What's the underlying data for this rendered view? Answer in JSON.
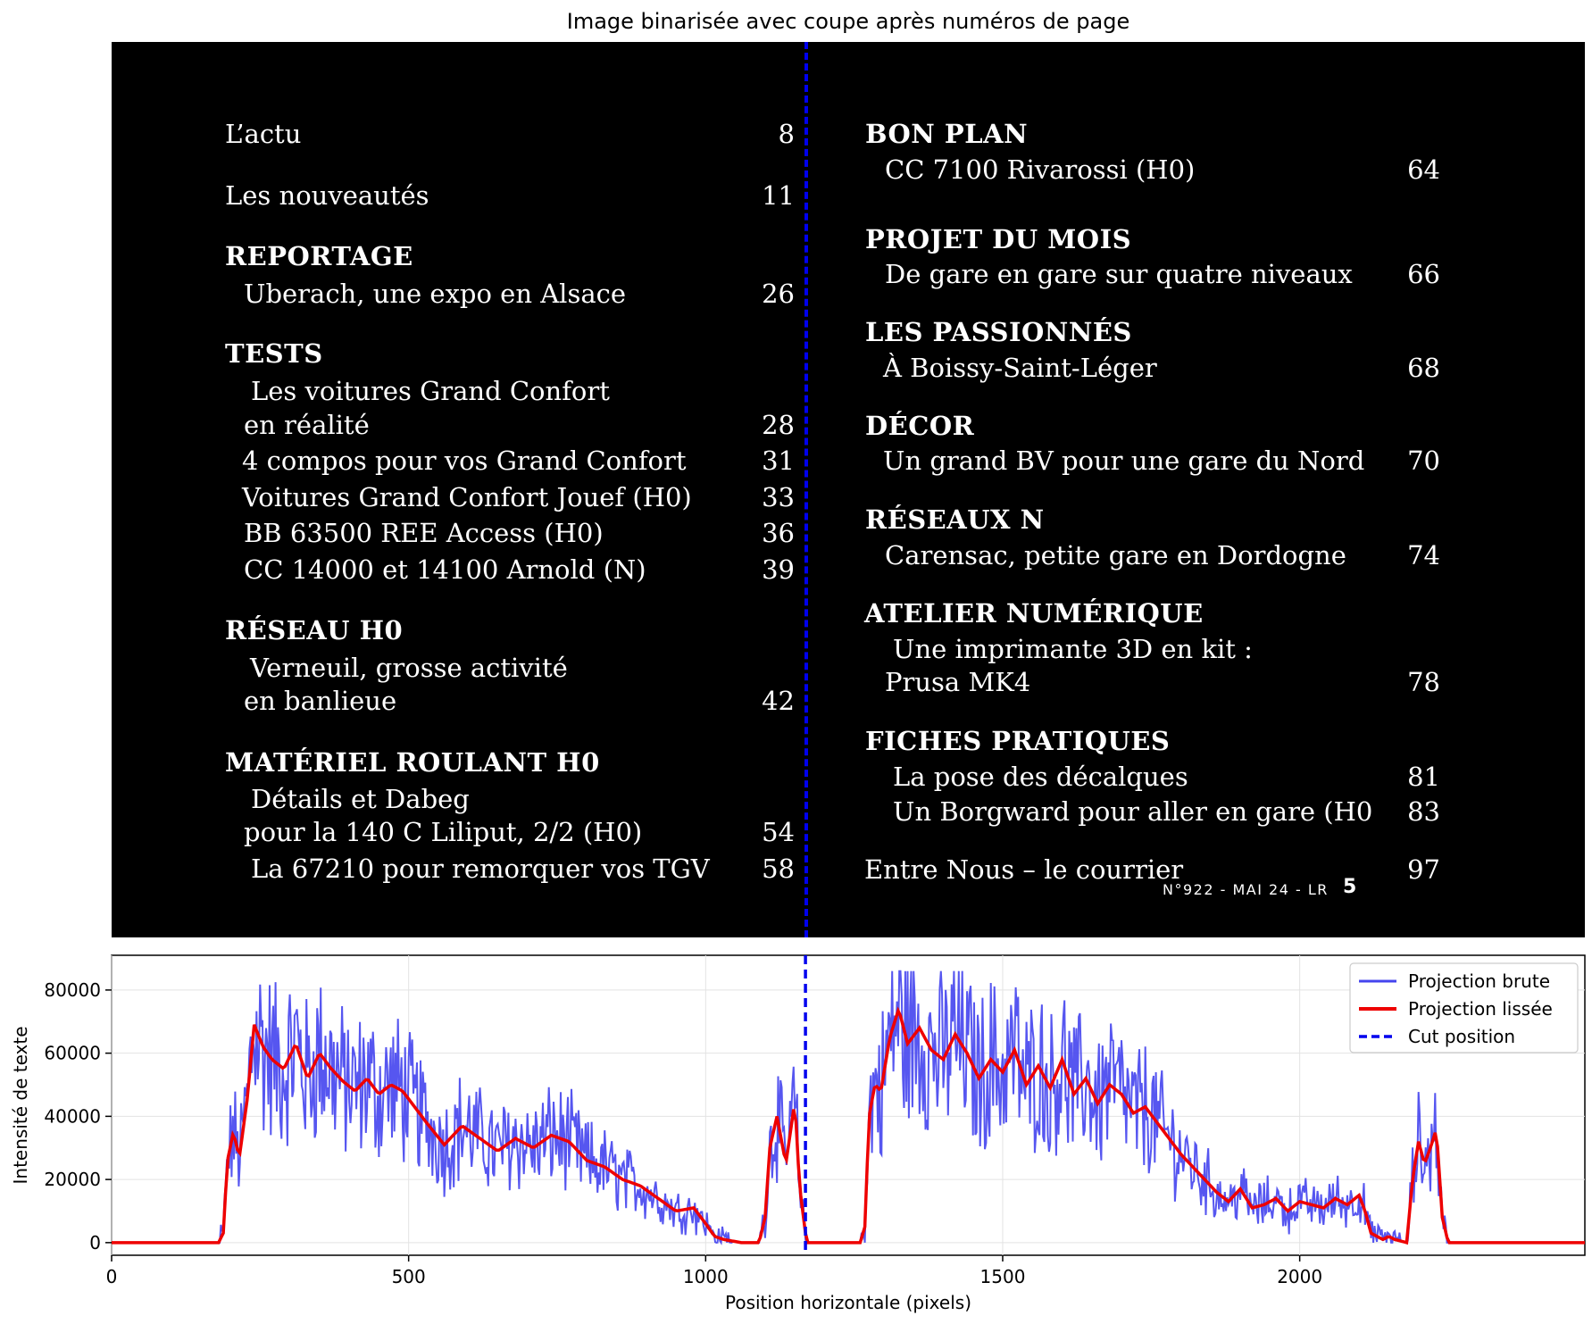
{
  "figure_title": "Image binarisée avec coupe après numéros de page",
  "toc_left": [
    {
      "text": "L’actu",
      "num": "8",
      "bold": false,
      "x": 127,
      "y": 111
    },
    {
      "text": "Les nouveautés",
      "num": "11",
      "bold": false,
      "x": 127,
      "y": 180
    },
    {
      "text": "REPORTAGE",
      "num": "",
      "bold": true,
      "x": 127,
      "y": 248
    },
    {
      "text": "Uberach, une expo en Alsace",
      "num": "26",
      "bold": false,
      "x": 148,
      "y": 290
    },
    {
      "text": "TESTS",
      "num": "",
      "bold": true,
      "x": 127,
      "y": 357
    },
    {
      "text": "Les voitures Grand Confort",
      "num": "",
      "bold": false,
      "x": 156,
      "y": 399
    },
    {
      "text": "en réalité",
      "num": "28",
      "bold": false,
      "x": 148,
      "y": 437
    },
    {
      "text": "4 compos pour vos Grand Confort",
      "num": "31",
      "bold": false,
      "x": 146,
      "y": 477
    },
    {
      "text": "Voitures Grand Confort Jouef (H0)",
      "num": "33",
      "bold": false,
      "x": 146,
      "y": 518
    },
    {
      "text": "BB 63500 REE Access (H0)",
      "num": "36",
      "bold": false,
      "x": 148,
      "y": 558
    },
    {
      "text": "CC 14000 et 14100 Arnold (N)",
      "num": "39",
      "bold": false,
      "x": 148,
      "y": 599
    },
    {
      "text": "RÉSEAU H0",
      "num": "",
      "bold": true,
      "x": 127,
      "y": 667
    },
    {
      "text": "Verneuil, grosse activité",
      "num": "",
      "bold": false,
      "x": 155,
      "y": 709
    },
    {
      "text": "en banlieue",
      "num": "42",
      "bold": false,
      "x": 148,
      "y": 746
    },
    {
      "text": "MATÉRIEL ROULANT H0",
      "num": "",
      "bold": true,
      "x": 127,
      "y": 815
    },
    {
      "text": "Détails et Dabeg",
      "num": "",
      "bold": false,
      "x": 156,
      "y": 856
    },
    {
      "text": "pour la 140 C Liliput, 2/2 (H0)",
      "num": "54",
      "bold": false,
      "x": 148,
      "y": 893
    },
    {
      "text": "La 67210 pour remorquer vos TGV",
      "num": "58",
      "bold": false,
      "x": 156,
      "y": 934
    }
  ],
  "toc_right": [
    {
      "text": "BON PLAN",
      "num": "",
      "bold": true,
      "x": 844,
      "y": 111
    },
    {
      "text": "CC 7100 Rivarossi (H0)",
      "num": "64",
      "bold": false,
      "x": 866,
      "y": 151
    },
    {
      "text": "PROJET DU MOIS",
      "num": "",
      "bold": true,
      "x": 844,
      "y": 229
    },
    {
      "text": "De gare en gare sur quatre niveaux",
      "num": "66",
      "bold": false,
      "x": 866,
      "y": 268
    },
    {
      "text": "LES PASSIONNÉS",
      "num": "",
      "bold": true,
      "x": 844,
      "y": 333
    },
    {
      "text": "À Boissy-Saint-Léger",
      "num": "68",
      "bold": false,
      "x": 864,
      "y": 373
    },
    {
      "text": "DÉCOR",
      "num": "",
      "bold": true,
      "x": 844,
      "y": 438
    },
    {
      "text": "Un grand BV pour une gare du Nord",
      "num": "70",
      "bold": false,
      "x": 864,
      "y": 477
    },
    {
      "text": "RÉSEAUX N",
      "num": "",
      "bold": true,
      "x": 844,
      "y": 543
    },
    {
      "text": "Carensac, petite gare en Dordogne",
      "num": "74",
      "bold": false,
      "x": 866,
      "y": 583
    },
    {
      "text": "ATELIER NUMÉRIQUE",
      "num": "",
      "bold": true,
      "x": 843,
      "y": 648
    },
    {
      "text": "Une imprimante 3D en kit :",
      "num": "",
      "bold": false,
      "x": 875,
      "y": 688
    },
    {
      "text": "Prusa MK4",
      "num": "78",
      "bold": false,
      "x": 866,
      "y": 725
    },
    {
      "text": "FICHES PRATIQUES",
      "num": "",
      "bold": true,
      "x": 844,
      "y": 791
    },
    {
      "text": "La pose des décalques",
      "num": "81",
      "bold": false,
      "x": 875,
      "y": 831
    },
    {
      "text": "Un Borgward pour aller en gare (H0",
      "num": "83",
      "bold": false,
      "x": 875,
      "y": 870
    },
    {
      "text": "Entre Nous – le courrier",
      "num": "97",
      "bold": false,
      "x": 843,
      "y": 935
    }
  ],
  "footer": {
    "text": "N°922 - MAI 24 - LR",
    "page": "5"
  },
  "colors": {
    "raw": "#4444ee",
    "smooth": "#ee0000",
    "cut": "#0000ee",
    "panel": "#000000"
  },
  "chart_data": {
    "type": "line",
    "xlabel": "Position horizontale (pixels)",
    "ylabel": "Intensité de texte",
    "xlim": [
      0,
      2480
    ],
    "ylim": [
      -4000,
      91000
    ],
    "xticks": [
      0,
      500,
      1000,
      1500,
      2000
    ],
    "yticks": [
      0,
      20000,
      40000,
      60000,
      80000
    ],
    "grid": true,
    "legend_position": "upper right",
    "cut_position": 1168,
    "series": [
      {
        "name": "Projection brute",
        "style": "raw"
      },
      {
        "name": "Projection lissée",
        "style": "smooth"
      },
      {
        "name": "Cut position",
        "style": "cut"
      }
    ],
    "profile_x": [
      0,
      180,
      188,
      195,
      205,
      215,
      228,
      240,
      255,
      270,
      290,
      310,
      330,
      350,
      370,
      390,
      410,
      430,
      450,
      470,
      490,
      510,
      530,
      560,
      590,
      620,
      650,
      680,
      710,
      740,
      770,
      800,
      830,
      860,
      890,
      920,
      950,
      980,
      1000,
      1015,
      1030,
      1045,
      1060,
      1090,
      1100,
      1108,
      1120,
      1135,
      1145,
      1150,
      1158,
      1170,
      1260,
      1268,
      1275,
      1285,
      1295,
      1310,
      1325,
      1340,
      1360,
      1380,
      1400,
      1420,
      1440,
      1460,
      1480,
      1500,
      1520,
      1540,
      1560,
      1580,
      1600,
      1620,
      1640,
      1660,
      1680,
      1700,
      1720,
      1740,
      1760,
      1780,
      1800,
      1820,
      1840,
      1860,
      1880,
      1900,
      1920,
      1940,
      1960,
      1980,
      2000,
      2020,
      2040,
      2060,
      2080,
      2100,
      2110,
      2120,
      2140,
      2150,
      2160,
      2180,
      2190,
      2200,
      2210,
      2220,
      2230,
      2240,
      2250,
      2480
    ],
    "profile_y": [
      0,
      0,
      3000,
      26000,
      35000,
      27000,
      45000,
      69000,
      62000,
      58000,
      55000,
      63000,
      52000,
      60000,
      55000,
      51000,
      48000,
      52000,
      47000,
      50000,
      48000,
      43000,
      38000,
      31000,
      37000,
      33000,
      29000,
      33000,
      30000,
      34000,
      32000,
      26000,
      24000,
      20000,
      18000,
      14000,
      10000,
      11000,
      6000,
      2000,
      1000,
      500,
      0,
      0,
      8000,
      30000,
      40000,
      25000,
      38000,
      45000,
      18000,
      0,
      0,
      5000,
      40000,
      50000,
      48000,
      65000,
      74000,
      63000,
      68000,
      61000,
      58000,
      66000,
      60000,
      52000,
      58000,
      54000,
      61000,
      50000,
      56000,
      49000,
      58000,
      47000,
      52000,
      44000,
      50000,
      47000,
      41000,
      43000,
      38000,
      33000,
      28000,
      24000,
      20000,
      16000,
      13000,
      17000,
      11000,
      12000,
      14000,
      10000,
      13000,
      12000,
      11000,
      14000,
      12000,
      15000,
      10000,
      3000,
      1000,
      2000,
      1000,
      0,
      20000,
      32000,
      25000,
      30000,
      36000,
      8000,
      0,
      0
    ]
  }
}
